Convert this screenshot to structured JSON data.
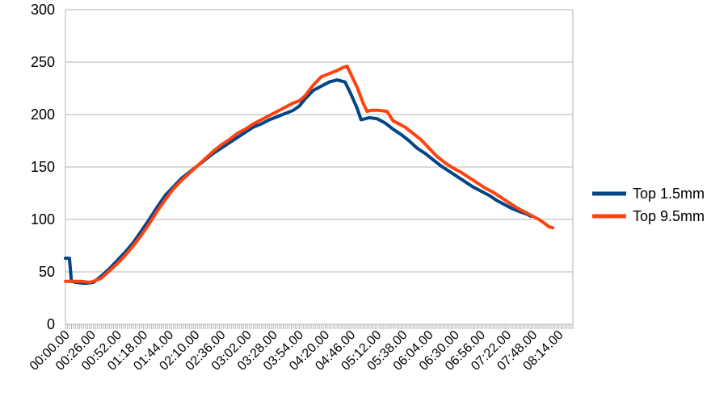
{
  "chart_data": {
    "type": "line",
    "title": "",
    "xlabel": "",
    "ylabel": "",
    "ylim": [
      0,
      300
    ],
    "yticks": [
      "0",
      "50",
      "100",
      "150",
      "200",
      "250",
      "300"
    ],
    "grid": true,
    "legend_position": "right",
    "x_labels": [
      "00:00.00",
      "00:26.00",
      "00:52.00",
      "01:18.00",
      "01:44.00",
      "02:10.00",
      "02:36.00",
      "03:02.00",
      "03:28.00",
      "03:54.00",
      "04:20.00",
      "04:46.00",
      "05:12.00",
      "05:38.00",
      "06:04.00",
      "06:30.00",
      "06:56.00",
      "07:22.00",
      "07:48.00",
      "08:14.00"
    ],
    "x_unit_seconds": [
      0,
      26,
      52,
      78,
      104,
      130,
      156,
      182,
      208,
      234,
      260,
      286,
      312,
      338,
      364,
      390,
      416,
      442,
      468,
      494
    ],
    "xlim_seconds": [
      0,
      508
    ],
    "series": [
      {
        "name": "Top 1.5mm",
        "color": "#004586",
        "points": [
          [
            0,
            63
          ],
          [
            4,
            63
          ],
          [
            6,
            41
          ],
          [
            10,
            40
          ],
          [
            20,
            39
          ],
          [
            28,
            40
          ],
          [
            36,
            46
          ],
          [
            44,
            53
          ],
          [
            52,
            61
          ],
          [
            60,
            69
          ],
          [
            68,
            78
          ],
          [
            76,
            89
          ],
          [
            84,
            100
          ],
          [
            92,
            112
          ],
          [
            100,
            123
          ],
          [
            108,
            131
          ],
          [
            116,
            139
          ],
          [
            124,
            145
          ],
          [
            132,
            151
          ],
          [
            140,
            157
          ],
          [
            148,
            163
          ],
          [
            156,
            168
          ],
          [
            164,
            173
          ],
          [
            172,
            178
          ],
          [
            180,
            183
          ],
          [
            188,
            188
          ],
          [
            196,
            191
          ],
          [
            204,
            195
          ],
          [
            212,
            198
          ],
          [
            220,
            201
          ],
          [
            228,
            204
          ],
          [
            234,
            208
          ],
          [
            240,
            215
          ],
          [
            248,
            223
          ],
          [
            256,
            227
          ],
          [
            264,
            231
          ],
          [
            272,
            233
          ],
          [
            280,
            231
          ],
          [
            286,
            219
          ],
          [
            292,
            206
          ],
          [
            296,
            195
          ],
          [
            304,
            197
          ],
          [
            312,
            196
          ],
          [
            320,
            192
          ],
          [
            328,
            186
          ],
          [
            336,
            181
          ],
          [
            344,
            175
          ],
          [
            352,
            168
          ],
          [
            360,
            163
          ],
          [
            368,
            157
          ],
          [
            376,
            151
          ],
          [
            384,
            146
          ],
          [
            392,
            141
          ],
          [
            400,
            136
          ],
          [
            408,
            131
          ],
          [
            416,
            127
          ],
          [
            424,
            123
          ],
          [
            432,
            118
          ],
          [
            440,
            114
          ],
          [
            448,
            110
          ],
          [
            456,
            107
          ],
          [
            462,
            105
          ],
          [
            466,
            103
          ]
        ]
      },
      {
        "name": "Top 9.5mm",
        "color": "#ff420e",
        "points": [
          [
            0,
            41
          ],
          [
            8,
            41
          ],
          [
            16,
            41
          ],
          [
            24,
            40
          ],
          [
            28,
            41
          ],
          [
            36,
            44
          ],
          [
            44,
            51
          ],
          [
            52,
            58
          ],
          [
            60,
            66
          ],
          [
            68,
            75
          ],
          [
            76,
            85
          ],
          [
            84,
            96
          ],
          [
            92,
            108
          ],
          [
            100,
            119
          ],
          [
            108,
            129
          ],
          [
            116,
            137
          ],
          [
            124,
            144
          ],
          [
            132,
            151
          ],
          [
            140,
            158
          ],
          [
            148,
            165
          ],
          [
            156,
            171
          ],
          [
            164,
            176
          ],
          [
            172,
            182
          ],
          [
            180,
            186
          ],
          [
            188,
            191
          ],
          [
            196,
            195
          ],
          [
            204,
            199
          ],
          [
            212,
            203
          ],
          [
            220,
            207
          ],
          [
            228,
            211
          ],
          [
            234,
            213
          ],
          [
            240,
            218
          ],
          [
            248,
            228
          ],
          [
            256,
            236
          ],
          [
            264,
            239
          ],
          [
            272,
            242
          ],
          [
            278,
            245
          ],
          [
            282,
            246
          ],
          [
            286,
            238
          ],
          [
            292,
            226
          ],
          [
            298,
            211
          ],
          [
            302,
            203
          ],
          [
            306,
            204
          ],
          [
            314,
            204
          ],
          [
            322,
            203
          ],
          [
            328,
            194
          ],
          [
            334,
            191
          ],
          [
            340,
            188
          ],
          [
            348,
            182
          ],
          [
            356,
            176
          ],
          [
            364,
            168
          ],
          [
            372,
            160
          ],
          [
            380,
            154
          ],
          [
            388,
            149
          ],
          [
            396,
            145
          ],
          [
            404,
            140
          ],
          [
            412,
            135
          ],
          [
            420,
            130
          ],
          [
            428,
            126
          ],
          [
            436,
            121
          ],
          [
            444,
            116
          ],
          [
            452,
            111
          ],
          [
            460,
            107
          ],
          [
            468,
            103
          ],
          [
            474,
            100
          ],
          [
            480,
            96
          ],
          [
            484,
            93
          ],
          [
            488,
            92
          ]
        ]
      }
    ]
  }
}
